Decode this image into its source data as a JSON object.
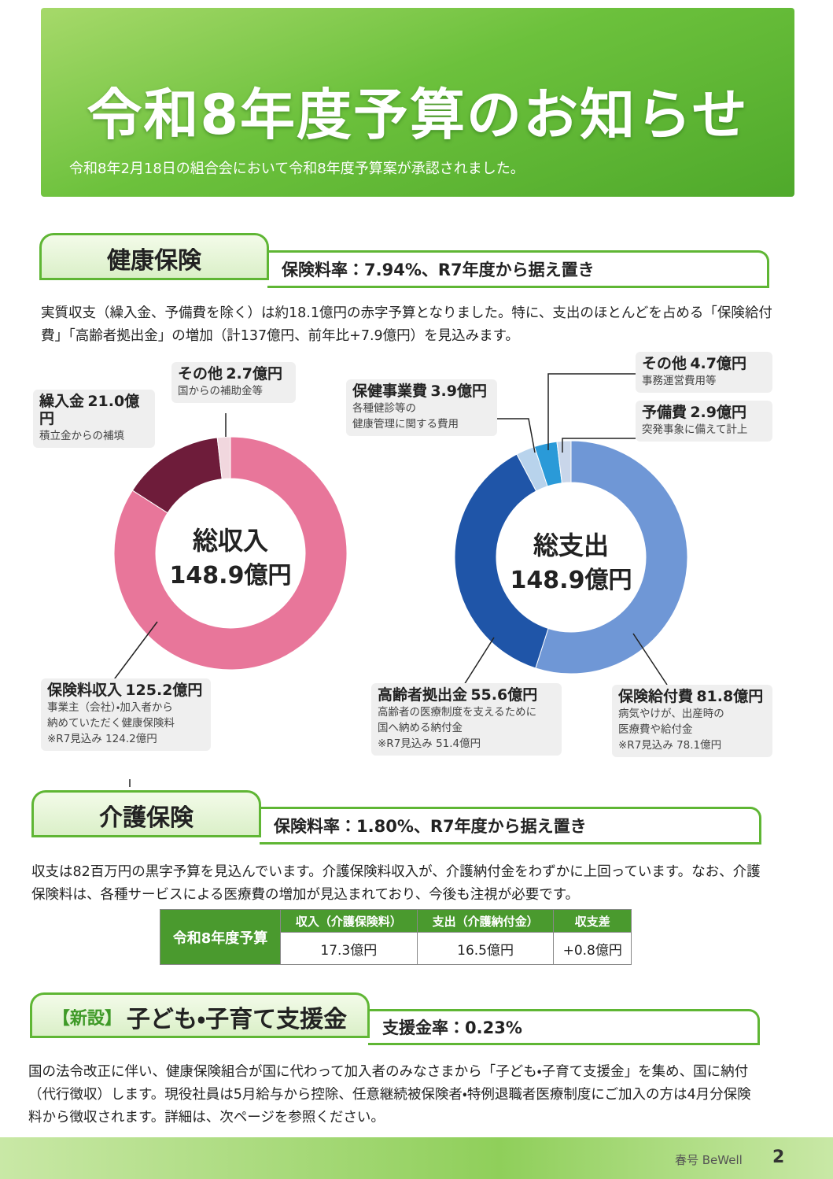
{
  "header": {
    "title": "令和8年度予算のお知らせ",
    "subtitle": "令和8年2月18日の組合会において令和8年度予算案が承認されました。"
  },
  "sections": [
    {
      "tag": "健康保険",
      "rate": "保険料率：7.94%、R7年度から据え置き",
      "body": "実質収支（繰入金、予備費を除く）は約18.1億円の赤字予算となりました。特に、支出のほとんどを占める「保険給付費」「高齢者拠出金」の増加（計137億円、前年比+7.9億円）を見込みます。"
    },
    {
      "tag": "介護保険",
      "rate": "保険料率：1.80%、R7年度から据え置き",
      "body": "収支は82百万円の黒字予算を見込んでいます。介護保険料収入が、介護納付金をわずかに上回っています。なお、介護保険料は、各種サービスによる医療費の増加が見込まれており、今後も注視が必要です。"
    },
    {
      "badge": "【新設】",
      "tag": "子ども・子育て支援金",
      "rate": "支援金率：0.23%",
      "body": "国の法令改正に伴い、健康保険組合が国に代わって加入者のみなさまから「子ども・子育て支援金」を集め、国に納付（代行徴収）します。現役社員は5月給与から控除、任意継続被保険者・特例退職者医療制度にご加入の方は4月分保険料から徴収されます。詳細は、次ページを参照ください。"
    }
  ],
  "chart_data": [
    {
      "type": "pie",
      "title": "総収入",
      "total": "148.9億円",
      "categories": [
        "保険料収入",
        "繰入金",
        "その他"
      ],
      "values": [
        125.2,
        21.0,
        2.7
      ],
      "value_labels": [
        "125.2億円",
        "21.0億円",
        "2.7億円"
      ],
      "colors": [
        "#e8769a",
        "#6e1c3a",
        "#f1d7de"
      ],
      "notes": [
        [
          "事業主（会社）・加入者から",
          "納めていただく健康保険料",
          "※R7見込み 124.2億円"
        ],
        [
          "積立金からの補填"
        ],
        [
          "国からの補助金等"
        ]
      ]
    },
    {
      "type": "pie",
      "title": "総支出",
      "total": "148.9億円",
      "categories": [
        "保険給付費",
        "高齢者拠出金",
        "保健事業費",
        "その他",
        "予備費"
      ],
      "values": [
        81.8,
        55.6,
        3.9,
        4.7,
        2.9
      ],
      "value_labels": [
        "81.8億円",
        "55.6億円",
        "3.9億円",
        "4.7億円",
        "2.9億円"
      ],
      "colors": [
        "#6f97d6",
        "#1f55a8",
        "#b8d3ec",
        "#2a9ad8",
        "#c9d6ea"
      ],
      "notes": [
        [
          "病気やけが、出産時の",
          "医療費や給付金",
          "※R7見込み 78.1億円"
        ],
        [
          "高齢者の医療制度を支えるために",
          "国へ納める納付金",
          "※R7見込み 51.4億円"
        ],
        [
          "各種健診等の",
          "健康管理に関する費用"
        ],
        [
          "事務運営費用等"
        ],
        [
          "突発事象に備えて計上"
        ]
      ]
    }
  ],
  "table": {
    "row_header": "令和8年度予算",
    "columns": [
      "収入（介護保険料）",
      "支出（介護納付金）",
      "収支差"
    ],
    "values": [
      "17.3億円",
      "16.5億円",
      "+0.8億円"
    ]
  },
  "footer": {
    "issue": "春号 BeWell",
    "page": "2"
  }
}
